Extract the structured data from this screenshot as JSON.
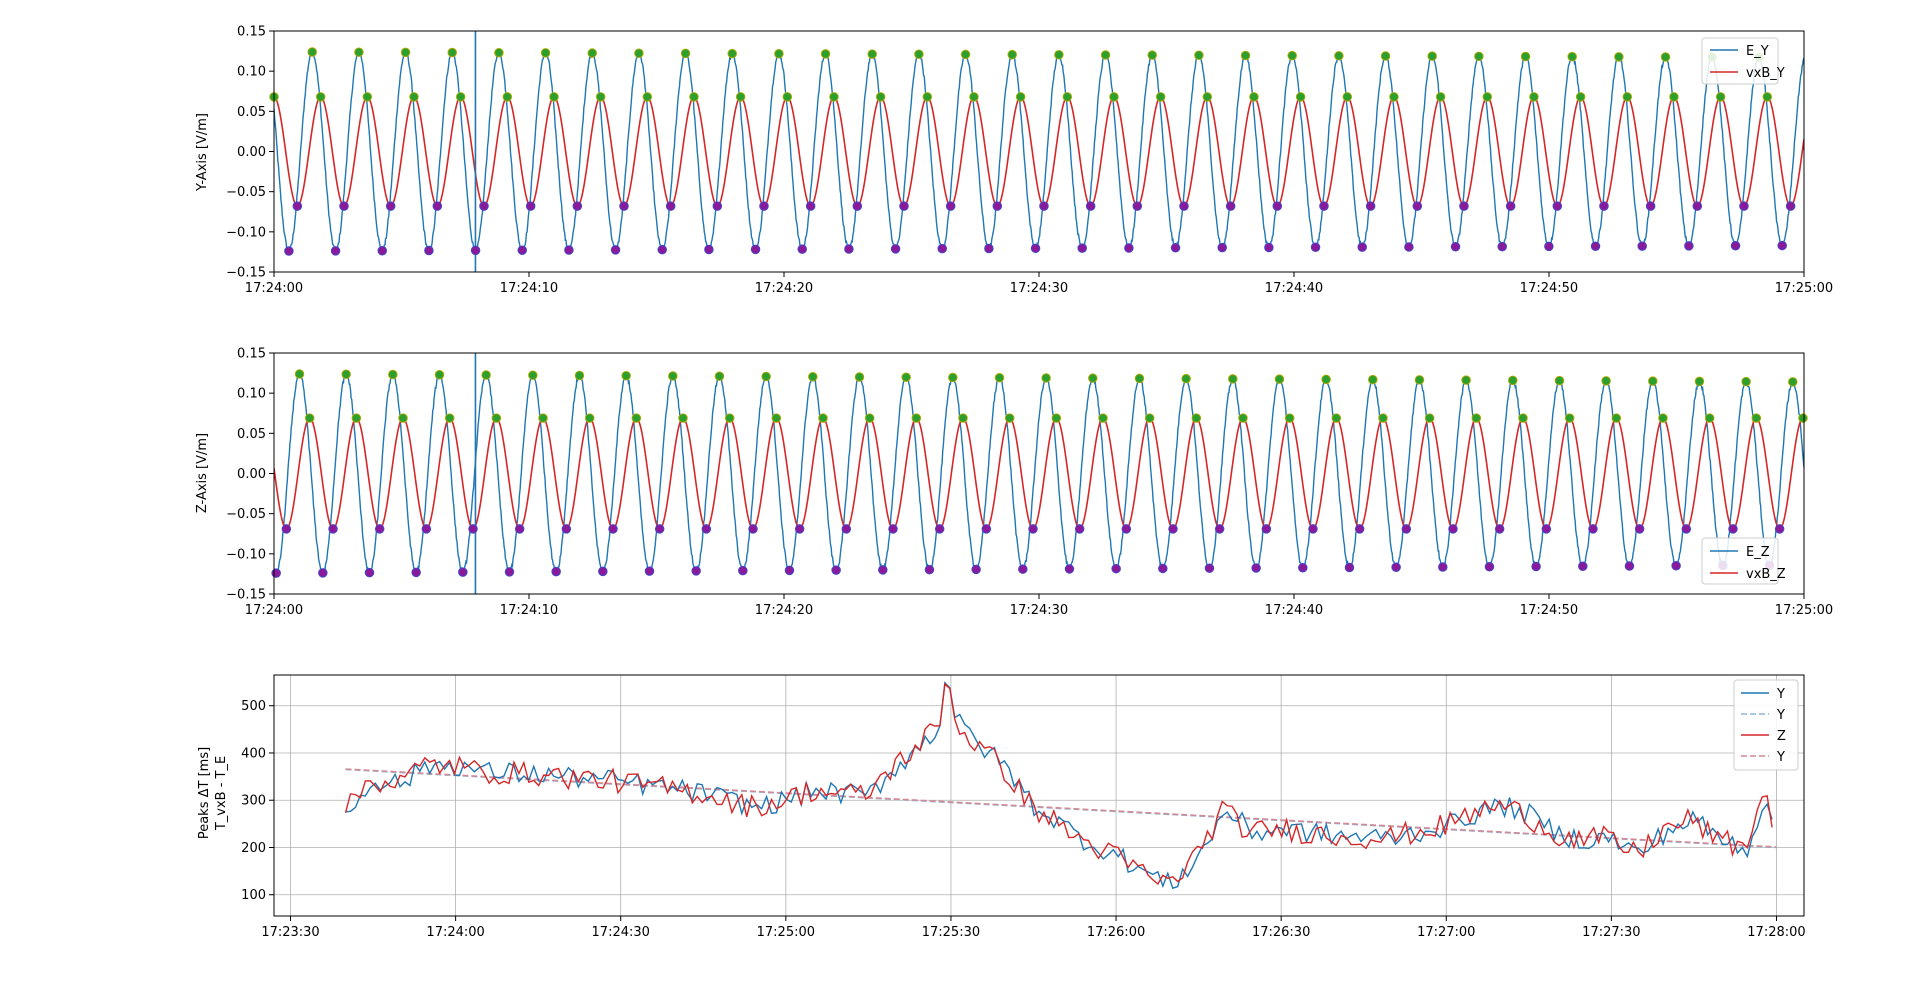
{
  "chart_data": [
    {
      "type": "line",
      "ylabel": "Y-Axis [V/m]",
      "ylim": [
        -0.15,
        0.15
      ],
      "yticks": [
        "0.15",
        "0.10",
        "0.05",
        "0.00",
        "−0.05",
        "−0.10",
        "−0.15"
      ],
      "xlim": [
        "17:24:00",
        "17:25:00"
      ],
      "xticks": [
        "17:24:00",
        "17:24:10",
        "17:24:20",
        "17:24:30",
        "17:24:40",
        "17:24:50",
        "17:25:00"
      ],
      "legend_position": "top-right",
      "series": [
        {
          "name": "E_Y",
          "color": "#1f77b4",
          "amplitude": 0.124,
          "amplitude_end": 0.117,
          "period_s": 1.83,
          "first_peak_s": 1.5
        },
        {
          "name": "vxB_Y",
          "color": "#d62728",
          "amplitude": 0.068,
          "period_s": 1.83,
          "first_peak_s": 0.0
        }
      ],
      "peak_markers": {
        "max_color": "#2ca02c",
        "min_color": "#8b1a9b"
      },
      "spike_time_s": 7.9
    },
    {
      "type": "line",
      "ylabel": "Z-Axis [V/m]",
      "ylim": [
        -0.15,
        0.15
      ],
      "yticks": [
        "0.15",
        "0.10",
        "0.05",
        "0.00",
        "−0.05",
        "−0.10",
        "−0.15"
      ],
      "xlim": [
        "17:24:00",
        "17:25:00"
      ],
      "xticks": [
        "17:24:00",
        "17:24:10",
        "17:24:20",
        "17:24:30",
        "17:24:40",
        "17:24:50",
        "17:25:00"
      ],
      "legend_position": "bottom-right",
      "series": [
        {
          "name": "E_Z",
          "color": "#1f77b4",
          "amplitude": 0.124,
          "amplitude_end": 0.114,
          "period_s": 1.83,
          "first_peak_s": 1.0
        },
        {
          "name": "vxB_Z",
          "color": "#d62728",
          "amplitude": 0.069,
          "period_s": 1.83,
          "first_peak_s": 1.4
        }
      ],
      "peak_markers": {
        "max_color": "#2ca02c",
        "min_color": "#8b1a9b"
      },
      "spike_time_s": 7.9
    },
    {
      "type": "line",
      "ylabel": "Peaks ΔT [ms]",
      "ylabel2": "T_vxB - T_E",
      "ylim": [
        55,
        565
      ],
      "yticks": [
        100,
        200,
        300,
        400,
        500
      ],
      "xlim": [
        "17:23:27",
        "17:28:05"
      ],
      "xticks": [
        "17:23:30",
        "17:24:00",
        "17:24:30",
        "17:25:00",
        "17:25:30",
        "17:26:00",
        "17:26:30",
        "17:27:00",
        "17:27:30",
        "17:28:00"
      ],
      "grid": true,
      "legend_position": "top-right",
      "legend": [
        {
          "name": "Y",
          "color": "#1f77b4",
          "style": "solid"
        },
        {
          "name": "Y",
          "color": "#8fb6d8",
          "style": "dashed"
        },
        {
          "name": "Z",
          "color": "#d62728",
          "style": "solid"
        },
        {
          "name": "Y",
          "color": "#d48a95",
          "style": "dashed"
        }
      ],
      "anchors": [
        [
          "17:23:40",
          265
        ],
        [
          "17:23:45",
          345
        ],
        [
          "17:23:50",
          335
        ],
        [
          "17:23:55",
          375
        ],
        [
          "17:24:00",
          375
        ],
        [
          "17:24:05",
          360
        ],
        [
          "17:24:15",
          355
        ],
        [
          "17:24:30",
          340
        ],
        [
          "17:24:45",
          315
        ],
        [
          "17:24:55",
          285
        ],
        [
          "17:25:00",
          300
        ],
        [
          "17:25:05",
          320
        ],
        [
          "17:25:15",
          310
        ],
        [
          "17:25:20",
          370
        ],
        [
          "17:25:25",
          420
        ],
        [
          "17:25:30",
          480
        ],
        [
          "17:25:35",
          420
        ],
        [
          "17:25:40",
          370
        ],
        [
          "17:25:45",
          290
        ],
        [
          "17:25:50",
          250
        ],
        [
          "17:25:55",
          210
        ],
        [
          "17:26:00",
          185
        ],
        [
          "17:26:05",
          150
        ],
        [
          "17:26:10",
          120
        ],
        [
          "17:26:15",
          180
        ],
        [
          "17:26:20",
          280
        ],
        [
          "17:26:25",
          230
        ],
        [
          "17:26:30",
          240
        ],
        [
          "17:26:40",
          225
        ],
        [
          "17:26:50",
          220
        ],
        [
          "17:27:00",
          245
        ],
        [
          "17:27:05",
          270
        ],
        [
          "17:27:10",
          290
        ],
        [
          "17:27:15",
          270
        ],
        [
          "17:27:20",
          230
        ],
        [
          "17:27:25",
          215
        ],
        [
          "17:27:30",
          220
        ],
        [
          "17:27:35",
          185
        ],
        [
          "17:27:40",
          235
        ],
        [
          "17:27:45",
          260
        ],
        [
          "17:27:50",
          215
        ],
        [
          "17:27:55",
          200
        ],
        [
          "17:27:58",
          310
        ],
        [
          "17:28:00",
          260
        ]
      ],
      "peak_annotations": [
        [
          "17:25:29",
          550
        ],
        [
          "17:25:30",
          540
        ]
      ],
      "trend": {
        "start": [
          "17:23:40",
          365
        ],
        "end": [
          "17:28:00",
          200
        ]
      }
    }
  ]
}
